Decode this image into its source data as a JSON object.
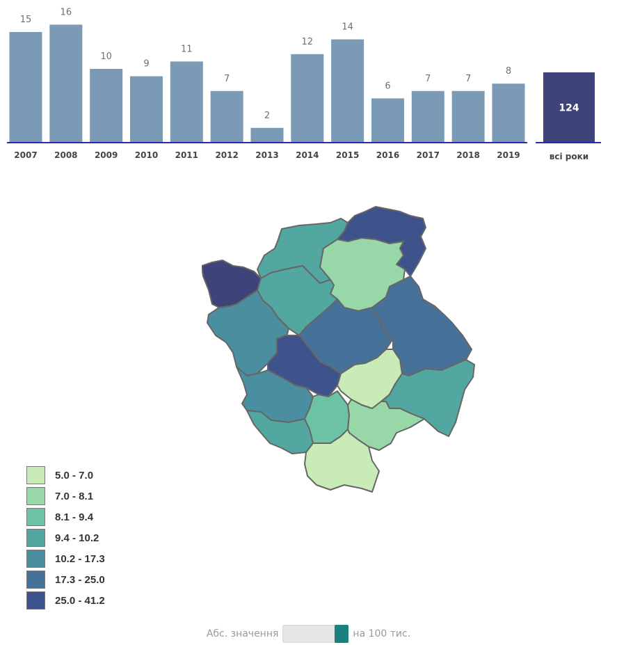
{
  "chart_data": {
    "type": "bar",
    "categories": [
      "2007",
      "2008",
      "2009",
      "2010",
      "2011",
      "2012",
      "2013",
      "2014",
      "2015",
      "2016",
      "2017",
      "2018",
      "2019"
    ],
    "values": [
      15,
      16,
      10,
      9,
      11,
      7,
      2,
      12,
      14,
      6,
      7,
      7,
      8
    ],
    "total": {
      "label": "всі роки",
      "value": 124
    },
    "title": "",
    "xlabel": "",
    "ylabel": "",
    "ylim": [
      0,
      16
    ]
  },
  "colors": {
    "bar": "#7a9ab6",
    "total_bar": "#3e4479",
    "axis": "#2c2c9e"
  },
  "legend": [
    {
      "label": "5.0 - 7.0",
      "color": "#c9ebb8"
    },
    {
      "label": "7.0 - 8.1",
      "color": "#98d8a8"
    },
    {
      "label": "8.1 - 9.4",
      "color": "#6cc2a4"
    },
    {
      "label": "9.4 - 10.2",
      "color": "#52a8a0"
    },
    {
      "label": "10.2 - 17.3",
      "color": "#4a8ea0"
    },
    {
      "label": "17.3 - 25.0",
      "color": "#46729a"
    },
    {
      "label": "25.0 - 41.2",
      "color": "#3e528c"
    }
  ],
  "toggle": {
    "left_label": "Абс. значення",
    "right_label": "на 100 тис."
  }
}
